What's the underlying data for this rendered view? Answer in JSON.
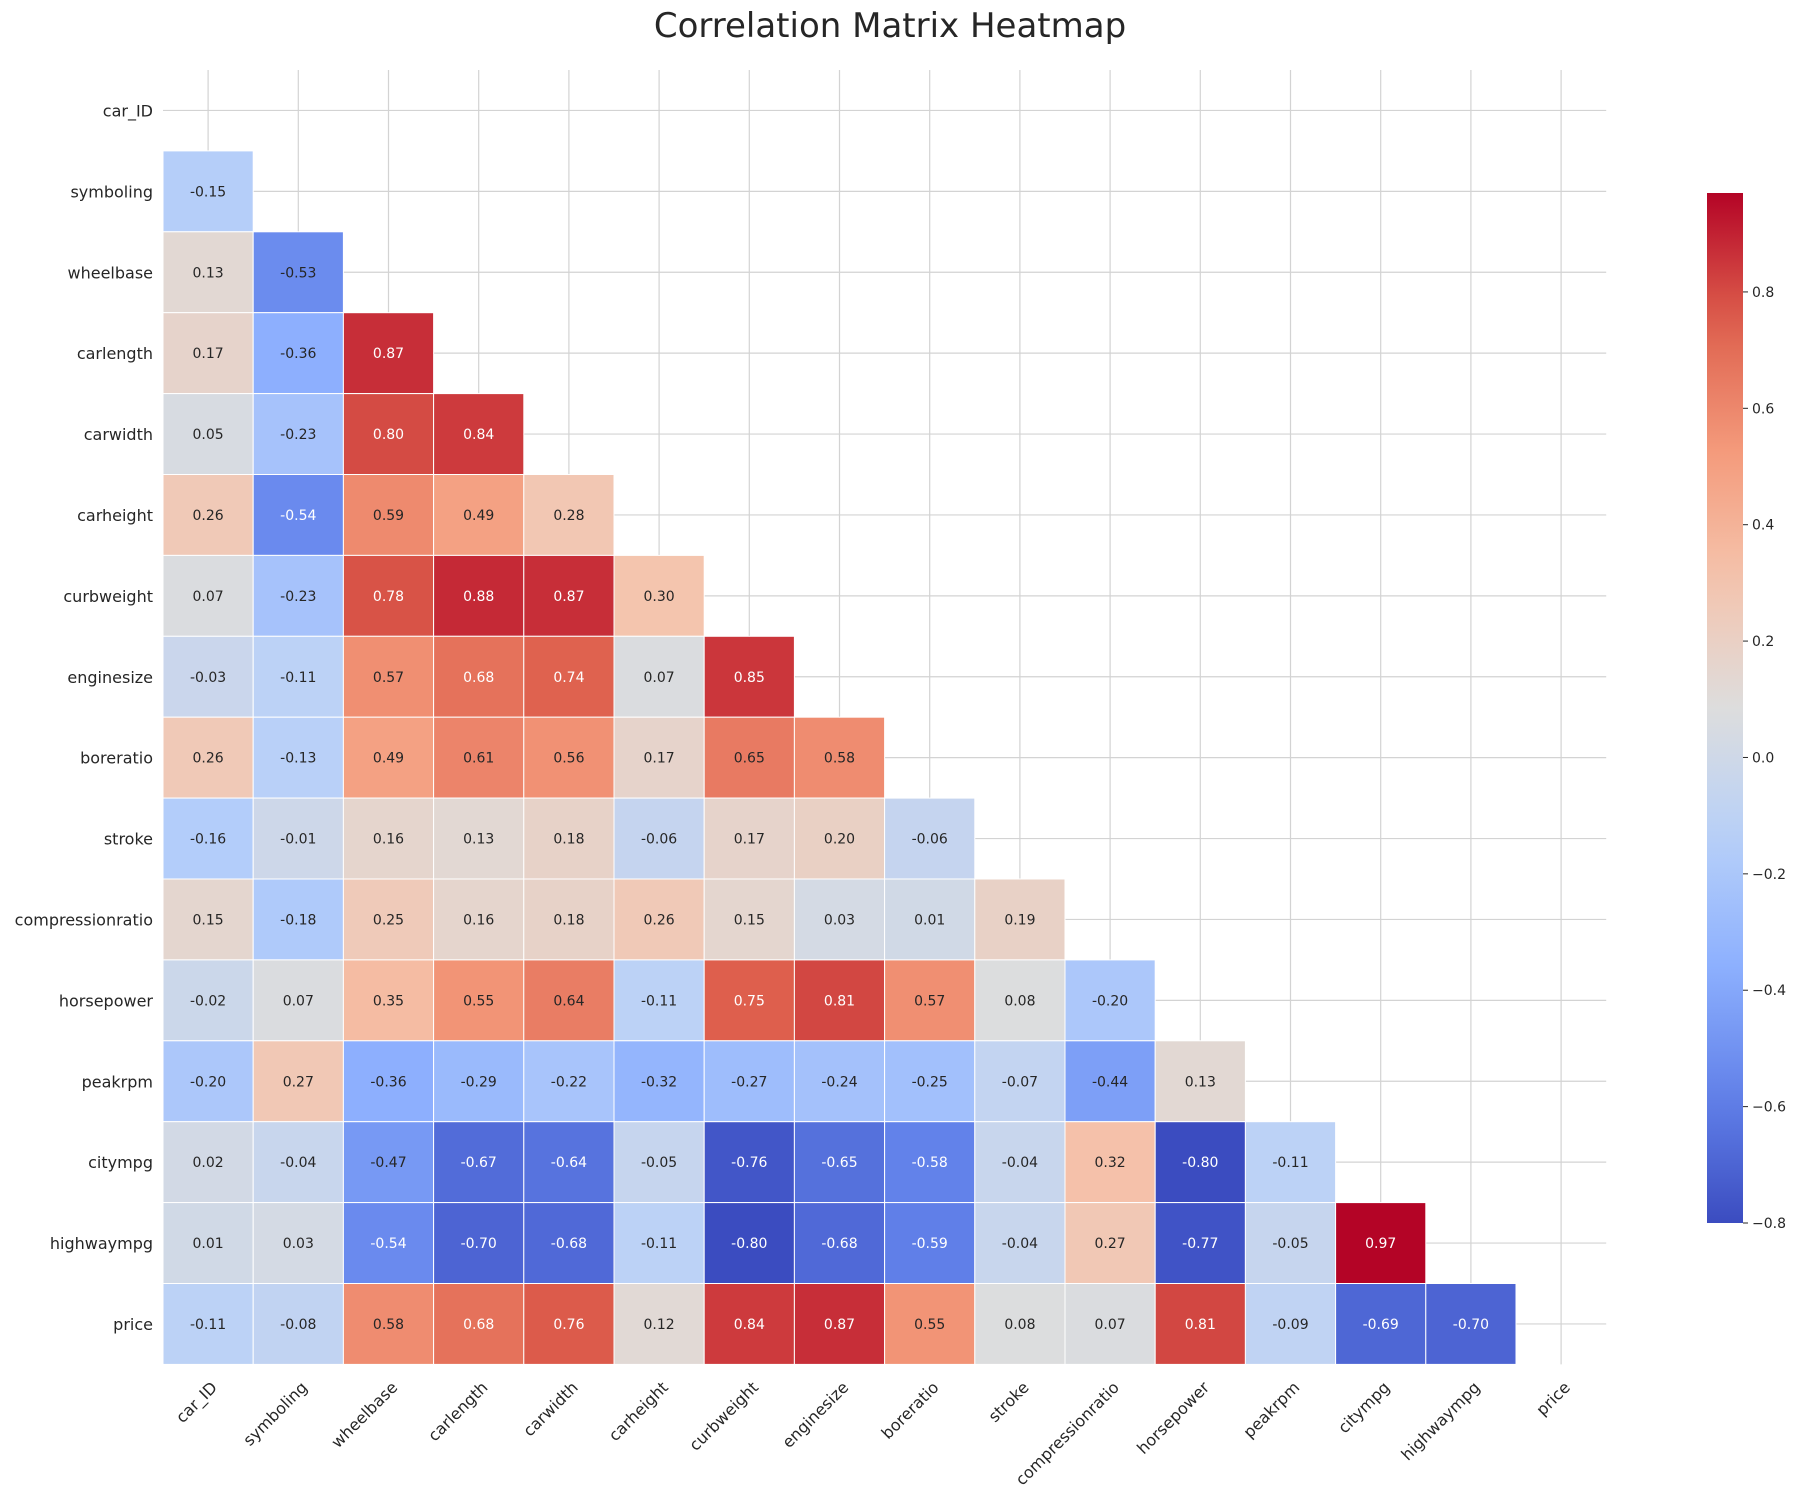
{
  "chart_data": {
    "type": "heatmap",
    "title": "Correlation Matrix Heatmap",
    "xlabel": "",
    "ylabel": "",
    "colormap": "coolwarm",
    "mask": "upper-triangle-including-diagonal",
    "grid": true,
    "legend": "colorbar-right",
    "variables": [
      "car_ID",
      "symboling",
      "wheelbase",
      "carlength",
      "carwidth",
      "carheight",
      "curbweight",
      "enginesize",
      "boreratio",
      "stroke",
      "compressionratio",
      "horsepower",
      "peakrpm",
      "citympg",
      "highwaympg",
      "price"
    ],
    "values": [
      [],
      [
        -0.15
      ],
      [
        0.13,
        -0.53
      ],
      [
        0.17,
        -0.36,
        0.87
      ],
      [
        0.05,
        -0.23,
        0.8,
        0.84
      ],
      [
        0.26,
        -0.54,
        0.59,
        0.49,
        0.28
      ],
      [
        0.07,
        -0.23,
        0.78,
        0.88,
        0.87,
        0.3
      ],
      [
        -0.03,
        -0.11,
        0.57,
        0.68,
        0.74,
        0.07,
        0.85
      ],
      [
        0.26,
        -0.13,
        0.49,
        0.61,
        0.56,
        0.17,
        0.65,
        0.58
      ],
      [
        -0.16,
        -0.01,
        0.16,
        0.13,
        0.18,
        -0.06,
        0.17,
        0.2,
        -0.06
      ],
      [
        0.15,
        -0.18,
        0.25,
        0.16,
        0.18,
        0.26,
        0.15,
        0.03,
        0.01,
        0.19
      ],
      [
        -0.02,
        0.07,
        0.35,
        0.55,
        0.64,
        -0.11,
        0.75,
        0.81,
        0.57,
        0.08,
        -0.2
      ],
      [
        -0.2,
        0.27,
        -0.36,
        -0.29,
        -0.22,
        -0.32,
        -0.27,
        -0.24,
        -0.25,
        -0.07,
        -0.44,
        0.13
      ],
      [
        0.02,
        -0.04,
        -0.47,
        -0.67,
        -0.64,
        -0.05,
        -0.76,
        -0.65,
        -0.58,
        -0.04,
        0.32,
        -0.8,
        -0.11
      ],
      [
        0.01,
        0.03,
        -0.54,
        -0.7,
        -0.68,
        -0.11,
        -0.8,
        -0.68,
        -0.59,
        -0.04,
        0.27,
        -0.77,
        -0.05,
        0.97
      ],
      [
        -0.11,
        -0.08,
        0.58,
        0.68,
        0.76,
        0.12,
        0.84,
        0.87,
        0.55,
        0.08,
        0.07,
        0.81,
        -0.09,
        -0.69,
        -0.7
      ]
    ],
    "colorbar": {
      "vmin": -0.8,
      "vmax": 0.97,
      "ticks": [
        -0.8,
        -0.6,
        -0.4,
        -0.2,
        0.0,
        0.2,
        0.4,
        0.6,
        0.8
      ],
      "tick_labels": [
        "−0.8",
        "−0.6",
        "−0.4",
        "−0.2",
        "0.0",
        "0.2",
        "0.4",
        "0.6",
        "0.8"
      ]
    }
  }
}
